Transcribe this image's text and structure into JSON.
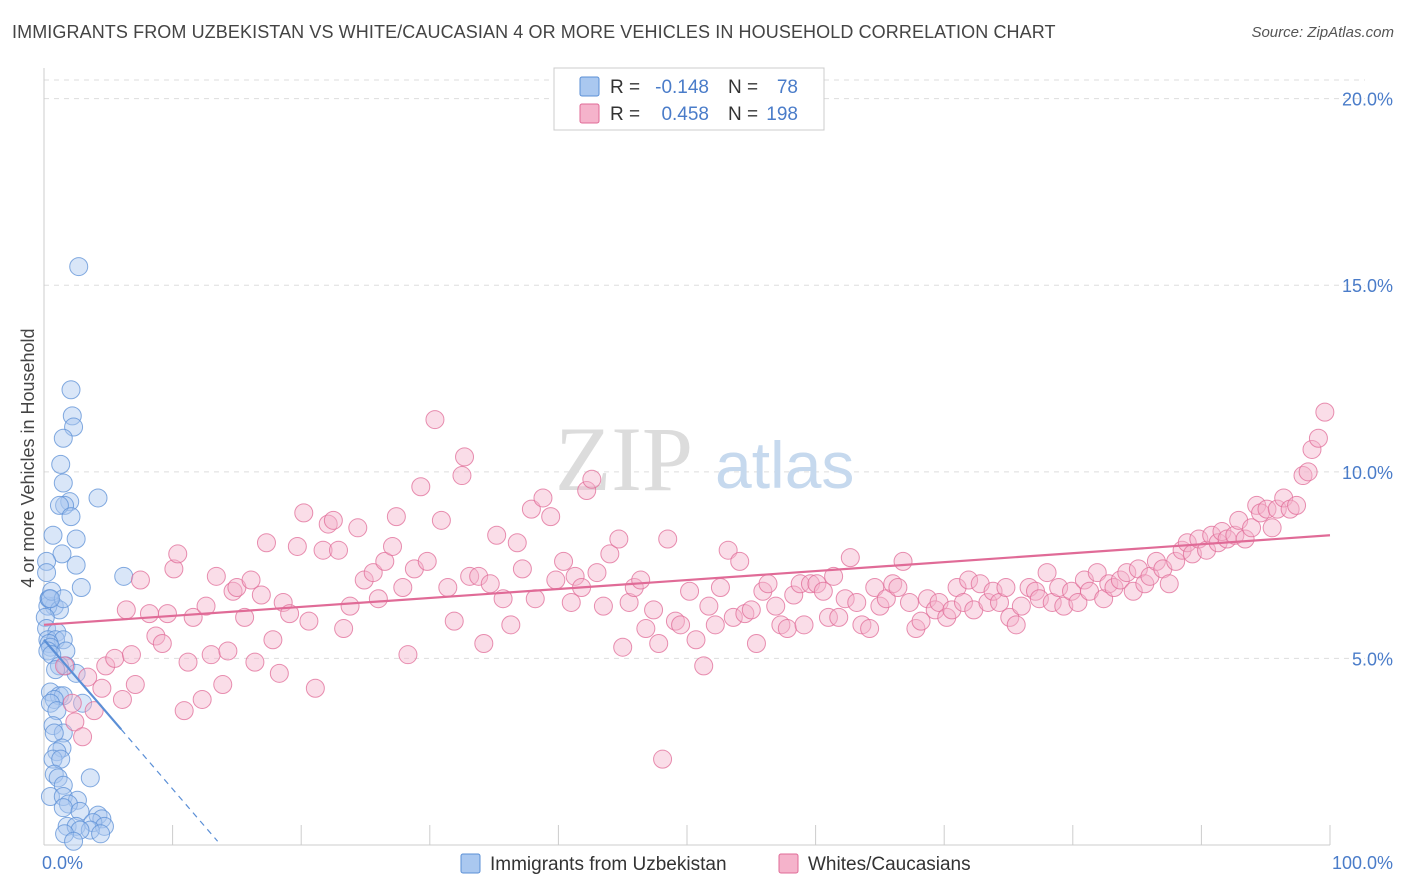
{
  "title": "IMMIGRANTS FROM UZBEKISTAN VS WHITE/CAUCASIAN 4 OR MORE VEHICLES IN HOUSEHOLD CORRELATION CHART",
  "source": "Source: ZipAtlas.com",
  "watermark": {
    "zip": "ZIP",
    "atlas": "atlas"
  },
  "colors": {
    "blue": "#5b8fd6",
    "blue_fill": "#aac8f0",
    "pink": "#e06b97",
    "pink_fill": "#f5b3cb",
    "tick": "#4a7cc9",
    "grid": "#dddddd"
  },
  "chart_data": {
    "type": "scatter",
    "ylabel": "4 or more Vehicles in Household",
    "xlabel": "",
    "xlim": [
      0,
      100
    ],
    "ylim": [
      0,
      20.5
    ],
    "x_tick_labels": [
      "0.0%",
      "100.0%"
    ],
    "y_ticks": [
      5,
      10,
      15,
      20
    ],
    "y_tick_labels": [
      "5.0%",
      "10.0%",
      "15.0%",
      "20.0%"
    ],
    "legend_top": [
      {
        "r_label": "R =",
        "r_value": "-0.148",
        "n_label": "N =",
        "n_value": "78"
      },
      {
        "r_label": "R =",
        "r_value": "0.458",
        "n_label": "N =",
        "n_value": "198"
      }
    ],
    "series": [
      {
        "name": "Immigrants from Uzbekistan",
        "color": "#5b8fd6",
        "trend": {
          "x": [
            0,
            6
          ],
          "y": [
            5.5,
            3.1
          ]
        },
        "trend_dashed": {
          "x": [
            6,
            13.5
          ],
          "y": [
            3.1,
            0.1
          ]
        },
        "points": [
          [
            2.7,
            15.5
          ],
          [
            2.1,
            12.2
          ],
          [
            2.2,
            11.5
          ],
          [
            2.3,
            11.2
          ],
          [
            1.5,
            10.9
          ],
          [
            1.3,
            10.2
          ],
          [
            1.5,
            9.7
          ],
          [
            4.2,
            9.3
          ],
          [
            2.0,
            9.2
          ],
          [
            1.6,
            9.1
          ],
          [
            1.2,
            9.1
          ],
          [
            2.1,
            8.8
          ],
          [
            0.7,
            8.3
          ],
          [
            2.5,
            8.2
          ],
          [
            1.4,
            7.8
          ],
          [
            0.2,
            7.6
          ],
          [
            2.5,
            7.5
          ],
          [
            0.2,
            7.3
          ],
          [
            6.2,
            7.2
          ],
          [
            0.4,
            6.6
          ],
          [
            0.8,
            6.4
          ],
          [
            0.3,
            6.4
          ],
          [
            0.4,
            6.6
          ],
          [
            1.2,
            6.3
          ],
          [
            0.1,
            6.1
          ],
          [
            2.9,
            6.9
          ],
          [
            0.6,
            6.8
          ],
          [
            1.5,
            6.6
          ],
          [
            0.5,
            6.6
          ],
          [
            0.2,
            5.8
          ],
          [
            1.0,
            5.7
          ],
          [
            0.3,
            5.5
          ],
          [
            0.9,
            5.5
          ],
          [
            1.5,
            5.5
          ],
          [
            0.4,
            5.4
          ],
          [
            0.5,
            5.3
          ],
          [
            1.7,
            5.2
          ],
          [
            0.3,
            5.2
          ],
          [
            0.6,
            5.1
          ],
          [
            1.7,
            4.8
          ],
          [
            1.2,
            4.8
          ],
          [
            0.9,
            4.7
          ],
          [
            2.5,
            4.6
          ],
          [
            0.5,
            4.1
          ],
          [
            1.2,
            4.0
          ],
          [
            1.5,
            4.0
          ],
          [
            0.8,
            3.9
          ],
          [
            0.5,
            3.8
          ],
          [
            3.0,
            3.8
          ],
          [
            1.0,
            3.6
          ],
          [
            0.7,
            3.2
          ],
          [
            1.5,
            3.0
          ],
          [
            0.8,
            3.0
          ],
          [
            1.4,
            2.6
          ],
          [
            1.0,
            2.5
          ],
          [
            0.7,
            2.3
          ],
          [
            1.3,
            2.3
          ],
          [
            0.8,
            1.9
          ],
          [
            1.1,
            1.8
          ],
          [
            3.6,
            1.8
          ],
          [
            1.5,
            1.6
          ],
          [
            0.5,
            1.3
          ],
          [
            1.5,
            1.3
          ],
          [
            2.6,
            1.2
          ],
          [
            1.9,
            1.1
          ],
          [
            1.5,
            1.0
          ],
          [
            2.8,
            0.9
          ],
          [
            4.2,
            0.8
          ],
          [
            4.5,
            0.7
          ],
          [
            3.8,
            0.6
          ],
          [
            1.8,
            0.5
          ],
          [
            2.5,
            0.5
          ],
          [
            4.7,
            0.5
          ],
          [
            3.6,
            0.4
          ],
          [
            2.8,
            0.4
          ],
          [
            1.6,
            0.3
          ],
          [
            4.4,
            0.3
          ],
          [
            2.3,
            0.1
          ]
        ]
      },
      {
        "name": "Whites/Caucasians",
        "color": "#e06b97",
        "trend": {
          "x": [
            0,
            100
          ],
          "y": [
            5.9,
            8.3
          ]
        },
        "points": [
          [
            1.6,
            4.8
          ],
          [
            2.2,
            3.8
          ],
          [
            2.4,
            3.3
          ],
          [
            3.0,
            2.9
          ],
          [
            3.4,
            4.5
          ],
          [
            3.9,
            3.6
          ],
          [
            4.5,
            4.2
          ],
          [
            4.8,
            4.8
          ],
          [
            5.5,
            5.0
          ],
          [
            6.1,
            3.9
          ],
          [
            6.4,
            6.3
          ],
          [
            6.8,
            5.1
          ],
          [
            7.1,
            4.3
          ],
          [
            7.5,
            7.1
          ],
          [
            8.2,
            6.2
          ],
          [
            8.7,
            5.6
          ],
          [
            9.2,
            5.4
          ],
          [
            9.6,
            6.2
          ],
          [
            10.1,
            7.4
          ],
          [
            10.4,
            7.8
          ],
          [
            10.9,
            3.6
          ],
          [
            11.2,
            4.9
          ],
          [
            11.6,
            6.1
          ],
          [
            12.3,
            3.9
          ],
          [
            12.6,
            6.4
          ],
          [
            13.0,
            5.1
          ],
          [
            13.4,
            7.2
          ],
          [
            13.9,
            4.3
          ],
          [
            14.3,
            5.2
          ],
          [
            14.7,
            6.8
          ],
          [
            15.0,
            6.9
          ],
          [
            15.6,
            6.1
          ],
          [
            16.1,
            7.1
          ],
          [
            16.4,
            4.9
          ],
          [
            16.9,
            6.7
          ],
          [
            17.3,
            8.1
          ],
          [
            17.8,
            5.5
          ],
          [
            18.3,
            4.6
          ],
          [
            18.6,
            6.5
          ],
          [
            19.1,
            6.2
          ],
          [
            19.7,
            8.0
          ],
          [
            20.2,
            8.9
          ],
          [
            20.6,
            6.0
          ],
          [
            21.1,
            4.2
          ],
          [
            21.7,
            7.9
          ],
          [
            22.1,
            8.6
          ],
          [
            22.5,
            8.7
          ],
          [
            22.9,
            7.9
          ],
          [
            23.3,
            5.8
          ],
          [
            23.8,
            6.4
          ],
          [
            24.4,
            8.5
          ],
          [
            24.9,
            7.1
          ],
          [
            25.6,
            7.3
          ],
          [
            26.0,
            6.6
          ],
          [
            26.5,
            7.6
          ],
          [
            27.1,
            8.0
          ],
          [
            27.4,
            8.8
          ],
          [
            27.9,
            6.9
          ],
          [
            28.3,
            5.1
          ],
          [
            28.8,
            7.4
          ],
          [
            29.3,
            9.6
          ],
          [
            29.8,
            7.6
          ],
          [
            30.4,
            11.4
          ],
          [
            30.9,
            8.7
          ],
          [
            31.4,
            6.9
          ],
          [
            31.9,
            6.0
          ],
          [
            32.5,
            9.9
          ],
          [
            32.7,
            10.4
          ],
          [
            33.1,
            7.2
          ],
          [
            33.8,
            7.2
          ],
          [
            34.2,
            5.4
          ],
          [
            34.7,
            7.0
          ],
          [
            35.2,
            8.3
          ],
          [
            35.7,
            6.6
          ],
          [
            36.3,
            5.9
          ],
          [
            36.8,
            8.1
          ],
          [
            37.2,
            7.4
          ],
          [
            37.9,
            9.0
          ],
          [
            38.2,
            6.6
          ],
          [
            38.8,
            9.3
          ],
          [
            39.4,
            8.8
          ],
          [
            39.8,
            7.1
          ],
          [
            40.4,
            7.6
          ],
          [
            41.0,
            6.5
          ],
          [
            41.3,
            7.2
          ],
          [
            41.8,
            6.9
          ],
          [
            42.2,
            9.5
          ],
          [
            42.6,
            9.8
          ],
          [
            43.0,
            7.3
          ],
          [
            43.5,
            6.4
          ],
          [
            44.0,
            7.8
          ],
          [
            44.7,
            8.2
          ],
          [
            45.0,
            5.3
          ],
          [
            45.5,
            6.5
          ],
          [
            45.9,
            6.9
          ],
          [
            46.4,
            7.1
          ],
          [
            46.8,
            5.8
          ],
          [
            47.4,
            6.3
          ],
          [
            47.8,
            5.4
          ],
          [
            48.1,
            2.3
          ],
          [
            48.5,
            8.2
          ],
          [
            49.1,
            6.0
          ],
          [
            49.5,
            5.9
          ],
          [
            50.2,
            6.8
          ],
          [
            50.7,
            5.5
          ],
          [
            51.3,
            4.8
          ],
          [
            51.7,
            6.4
          ],
          [
            52.2,
            5.9
          ],
          [
            52.6,
            6.9
          ],
          [
            53.2,
            7.9
          ],
          [
            53.6,
            6.1
          ],
          [
            54.1,
            7.6
          ],
          [
            54.5,
            6.2
          ],
          [
            55.0,
            6.3
          ],
          [
            55.4,
            5.4
          ],
          [
            55.9,
            6.8
          ],
          [
            56.3,
            7.0
          ],
          [
            56.9,
            6.4
          ],
          [
            57.3,
            5.9
          ],
          [
            57.8,
            5.8
          ],
          [
            58.3,
            6.7
          ],
          [
            58.8,
            7.0
          ],
          [
            59.1,
            5.9
          ],
          [
            59.6,
            7.0
          ],
          [
            60.1,
            7.0
          ],
          [
            60.6,
            6.8
          ],
          [
            61.0,
            6.1
          ],
          [
            61.4,
            7.2
          ],
          [
            61.8,
            6.1
          ],
          [
            62.3,
            6.6
          ],
          [
            62.7,
            7.7
          ],
          [
            63.2,
            6.5
          ],
          [
            63.6,
            5.9
          ],
          [
            64.2,
            5.8
          ],
          [
            64.6,
            6.9
          ],
          [
            65.0,
            6.4
          ],
          [
            65.5,
            6.6
          ],
          [
            66.0,
            7.0
          ],
          [
            66.4,
            6.9
          ],
          [
            66.8,
            7.6
          ],
          [
            67.3,
            6.5
          ],
          [
            67.8,
            5.8
          ],
          [
            68.2,
            6.0
          ],
          [
            68.7,
            6.6
          ],
          [
            69.3,
            6.3
          ],
          [
            69.6,
            6.5
          ],
          [
            70.2,
            6.1
          ],
          [
            70.6,
            6.3
          ],
          [
            71.0,
            6.9
          ],
          [
            71.5,
            6.5
          ],
          [
            71.9,
            7.1
          ],
          [
            72.3,
            6.3
          ],
          [
            72.8,
            7.0
          ],
          [
            73.4,
            6.5
          ],
          [
            73.8,
            6.8
          ],
          [
            74.3,
            6.5
          ],
          [
            74.8,
            6.9
          ],
          [
            75.1,
            6.1
          ],
          [
            75.6,
            5.9
          ],
          [
            76.0,
            6.4
          ],
          [
            76.6,
            6.9
          ],
          [
            77.1,
            6.8
          ],
          [
            77.4,
            6.6
          ],
          [
            78.0,
            7.3
          ],
          [
            78.4,
            6.5
          ],
          [
            78.9,
            6.9
          ],
          [
            79.3,
            6.4
          ],
          [
            79.9,
            6.8
          ],
          [
            80.4,
            6.5
          ],
          [
            80.9,
            7.1
          ],
          [
            81.3,
            6.8
          ],
          [
            81.9,
            7.3
          ],
          [
            82.4,
            6.6
          ],
          [
            82.8,
            7.0
          ],
          [
            83.2,
            6.9
          ],
          [
            83.7,
            7.1
          ],
          [
            84.2,
            7.3
          ],
          [
            84.7,
            6.8
          ],
          [
            85.1,
            7.4
          ],
          [
            85.6,
            7.0
          ],
          [
            86.0,
            7.2
          ],
          [
            86.5,
            7.6
          ],
          [
            87.0,
            7.4
          ],
          [
            87.5,
            7.0
          ],
          [
            88.0,
            7.6
          ],
          [
            88.5,
            7.9
          ],
          [
            88.9,
            8.1
          ],
          [
            89.3,
            7.8
          ],
          [
            89.8,
            8.2
          ],
          [
            90.4,
            7.9
          ],
          [
            90.8,
            8.3
          ],
          [
            91.3,
            8.1
          ],
          [
            91.6,
            8.4
          ],
          [
            92.0,
            8.2
          ],
          [
            92.6,
            8.3
          ],
          [
            92.9,
            8.7
          ],
          [
            93.4,
            8.2
          ],
          [
            93.9,
            8.5
          ],
          [
            94.3,
            9.1
          ],
          [
            94.6,
            8.9
          ],
          [
            95.1,
            9.0
          ],
          [
            95.5,
            8.5
          ],
          [
            95.9,
            9.0
          ],
          [
            96.4,
            9.3
          ],
          [
            96.9,
            9.0
          ],
          [
            97.4,
            9.1
          ],
          [
            97.9,
            9.9
          ],
          [
            98.3,
            10.0
          ],
          [
            98.6,
            10.6
          ],
          [
            99.1,
            10.9
          ],
          [
            99.6,
            11.6
          ]
        ]
      }
    ]
  }
}
